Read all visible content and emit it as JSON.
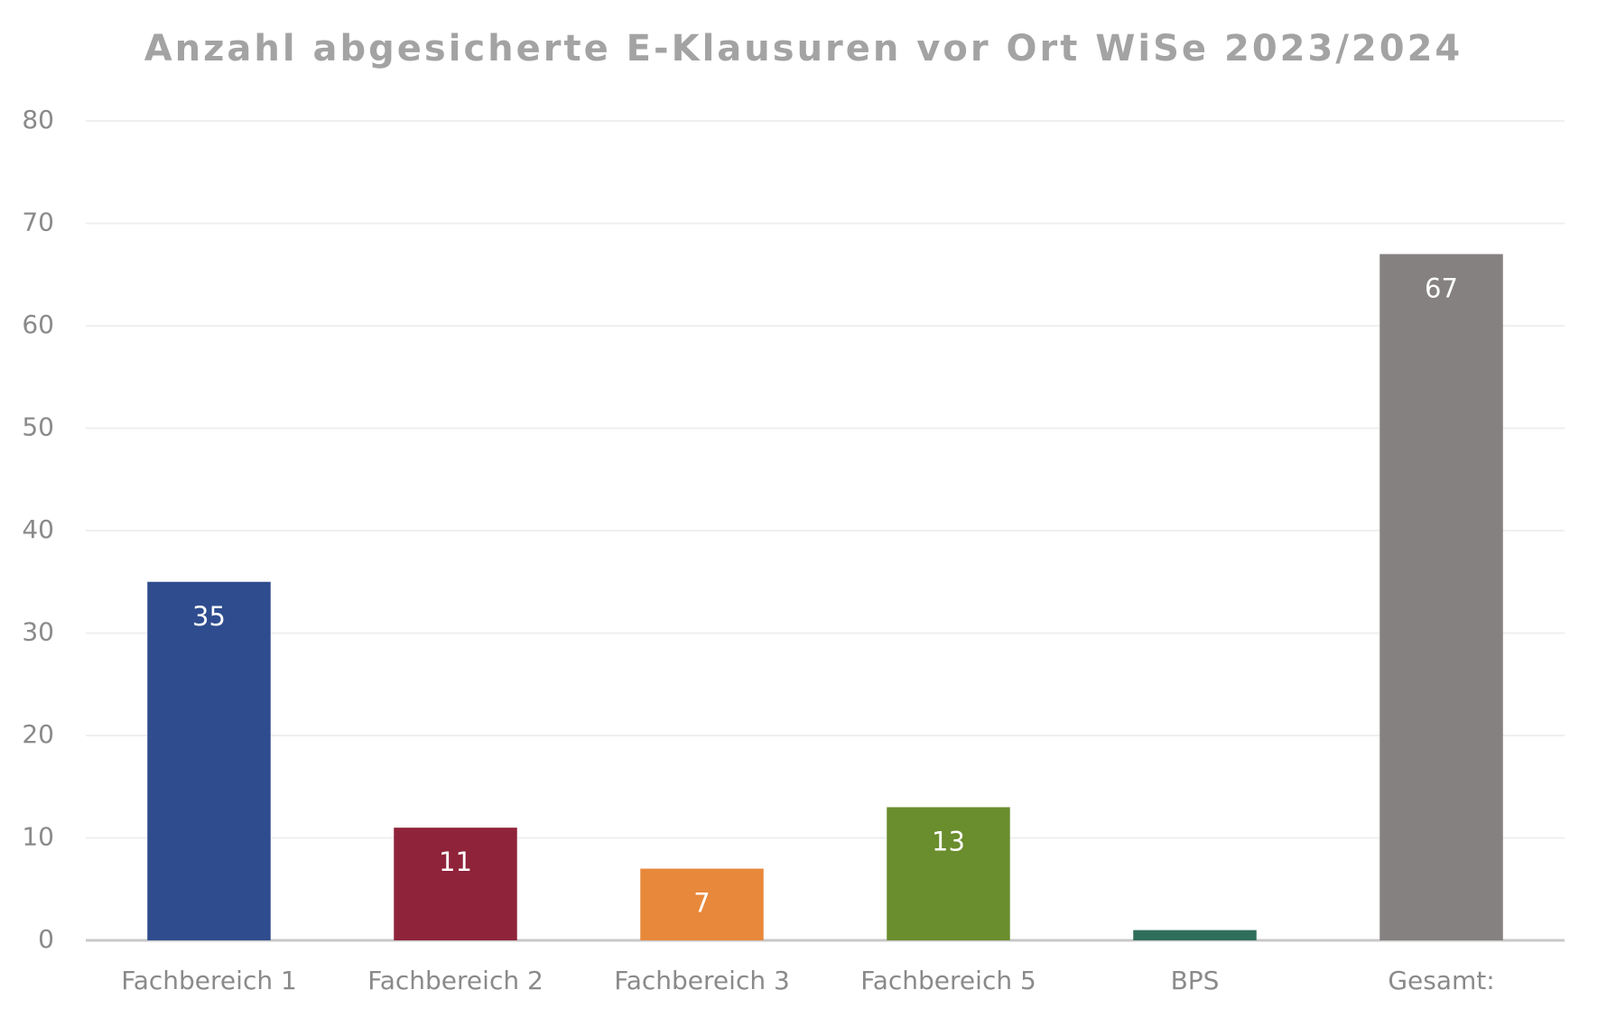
{
  "chart_data": {
    "type": "bar",
    "title": "Anzahl abgesicherte E-Klausuren vor Ort WiSe 2023/2024",
    "categories": [
      "Fachbereich 1",
      "Fachbereich 2",
      "Fachbereich 3",
      "Fachbereich 5",
      "BPS",
      "Gesamt:"
    ],
    "values": [
      35,
      11,
      7,
      13,
      1,
      67
    ],
    "value_labels": [
      "35",
      "11",
      "7",
      "13",
      null,
      "67"
    ],
    "colors": [
      "#2f4c8e",
      "#8f2339",
      "#e8883b",
      "#6a8d2d",
      "#2f6e5b",
      "#858180"
    ],
    "ylim": [
      0,
      80
    ],
    "yticks": [
      0,
      10,
      20,
      30,
      40,
      50,
      60,
      70,
      80
    ],
    "grid": true
  }
}
